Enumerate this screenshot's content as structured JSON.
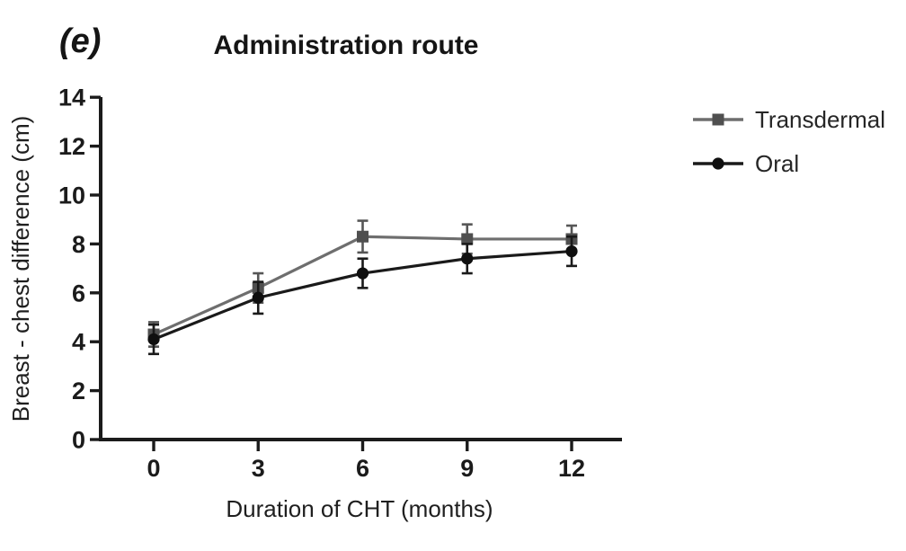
{
  "panel_label": "(e)",
  "chart_data": {
    "type": "line",
    "title": "Administration route",
    "xlabel": "Duration of CHT (months)",
    "ylabel": "Breast - chest difference (cm)",
    "x": [
      0,
      3,
      6,
      9,
      12
    ],
    "x_ticks": [
      0,
      3,
      6,
      9,
      12
    ],
    "y_ticks": [
      0,
      2,
      4,
      6,
      8,
      10,
      12,
      14
    ],
    "xlim": [
      -1.6,
      13.5
    ],
    "ylim": [
      0,
      14
    ],
    "grid": false,
    "legend_position": "right",
    "background_color": "#ffffff",
    "axis_color": "#1b1b1b",
    "series": [
      {
        "name": "Transdermal",
        "marker": "square",
        "line_color": "#6e6e6e",
        "marker_color": "#4f4f4f",
        "error_color": "#565656",
        "values": [
          4.3,
          6.2,
          8.3,
          8.2,
          8.2
        ],
        "errors": [
          0.5,
          0.6,
          0.65,
          0.6,
          0.55
        ]
      },
      {
        "name": "Oral",
        "marker": "circle",
        "line_color": "#1a1a1a",
        "marker_color": "#0f0f0f",
        "error_color": "#1a1a1a",
        "values": [
          4.1,
          5.8,
          6.8,
          7.4,
          7.7
        ],
        "errors": [
          0.6,
          0.65,
          0.6,
          0.6,
          0.6
        ]
      }
    ]
  }
}
